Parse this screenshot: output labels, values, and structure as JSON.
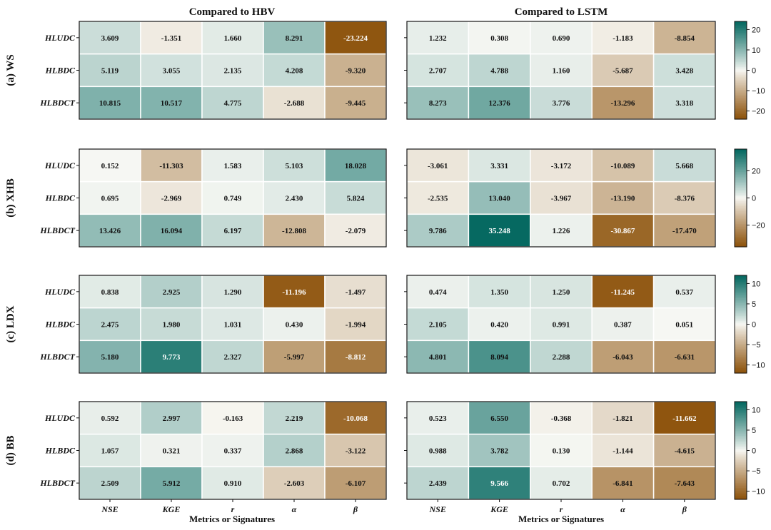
{
  "chart_data": {
    "type": "heatmap",
    "column_titles": [
      "Compared to HBV",
      "Compared to LSTM"
    ],
    "x_categories": [
      "NSE",
      "KGE",
      "r",
      "α",
      "β"
    ],
    "y_categories": [
      "HLUDC",
      "HLBDC",
      "HLBDCT"
    ],
    "xlabel": "Metrics or Signatures",
    "colormap": {
      "negative": "#8c5109",
      "zero": "#f8f8f4",
      "positive": "#01665e"
    },
    "panels": [
      {
        "title": "(a)  WS",
        "vlim": [
          -24,
          24
        ],
        "colorbar_ticks": [
          20,
          10,
          0,
          -10,
          -20
        ],
        "HBV": [
          [
            3.609,
            -1.351,
            1.66,
            8.291,
            -23.224
          ],
          [
            5.119,
            3.055,
            2.135,
            4.208,
            -9.32
          ],
          [
            10.815,
            10.517,
            4.775,
            -2.688,
            -9.445
          ]
        ],
        "LSTM": [
          [
            1.232,
            0.308,
            0.69,
            -1.183,
            -8.854
          ],
          [
            2.707,
            4.788,
            1.16,
            -5.687,
            3.428
          ],
          [
            8.273,
            12.376,
            3.776,
            -13.296,
            3.318
          ]
        ]
      },
      {
        "title": "(b)  XHB",
        "vlim": [
          -36,
          36
        ],
        "colorbar_ticks": [
          20,
          0,
          -20
        ],
        "HBV": [
          [
            0.152,
            -11.303,
            1.583,
            5.103,
            18.028
          ],
          [
            0.695,
            -2.969,
            0.749,
            2.43,
            5.824
          ],
          [
            13.426,
            16.094,
            6.197,
            -12.808,
            -2.079
          ]
        ],
        "LSTM": [
          [
            -3.061,
            3.331,
            -3.172,
            -10.089,
            5.668
          ],
          [
            -2.535,
            13.04,
            -3.967,
            -13.19,
            -8.376
          ],
          [
            9.786,
            35.248,
            1.226,
            -30.867,
            -17.47
          ]
        ]
      },
      {
        "title": "(c)  LDX",
        "vlim": [
          -12,
          12
        ],
        "colorbar_ticks": [
          10,
          5,
          0,
          -5,
          -10
        ],
        "HBV": [
          [
            0.838,
            2.925,
            1.29,
            -11.196,
            -1.497
          ],
          [
            2.475,
            1.98,
            1.031,
            0.43,
            -1.994
          ],
          [
            5.18,
            9.773,
            2.327,
            -5.997,
            -8.812
          ]
        ],
        "LSTM": [
          [
            0.474,
            1.35,
            1.25,
            -11.245,
            0.537
          ],
          [
            2.105,
            0.42,
            0.991,
            0.387,
            0.051
          ],
          [
            4.801,
            8.094,
            2.288,
            -6.043,
            -6.631
          ]
        ]
      },
      {
        "title": "(d)  BB",
        "vlim": [
          -12,
          12
        ],
        "colorbar_ticks": [
          10,
          5,
          0,
          -5,
          -10
        ],
        "HBV": [
          [
            0.592,
            2.997,
            -0.163,
            2.219,
            -10.068
          ],
          [
            1.057,
            0.321,
            0.337,
            2.868,
            -3.122
          ],
          [
            2.509,
            5.912,
            0.91,
            -2.603,
            -6.107
          ]
        ],
        "LSTM": [
          [
            0.523,
            6.55,
            -0.368,
            -1.821,
            -11.662
          ],
          [
            0.988,
            3.782,
            0.13,
            -1.144,
            -4.615
          ],
          [
            2.439,
            9.566,
            0.702,
            -6.841,
            -7.643
          ]
        ]
      }
    ]
  }
}
